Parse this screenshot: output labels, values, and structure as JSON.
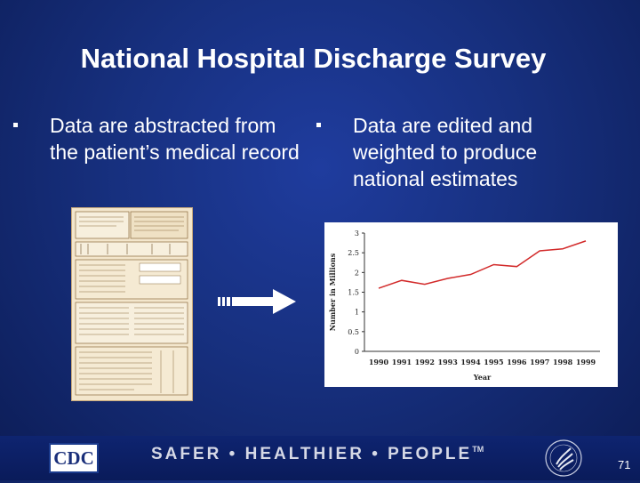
{
  "slide": {
    "title": "National Hospital Discharge Survey",
    "bullets": [
      "Data are abstracted from the patient’s medical record",
      "Data are edited and weighted to produce national estimates"
    ],
    "page_number": "71"
  },
  "footer": {
    "logo_text": "CDC",
    "slogan": "SAFER • HEALTHIER • PEOPLE",
    "trademark": "TM"
  },
  "icons": {
    "arrow": "right-arrow-icon",
    "form": "medical-abstract-form-image",
    "seal": "hhs-seal-icon"
  },
  "colors": {
    "background": "#17307f",
    "line": "#d22a2a"
  },
  "chart_data": {
    "type": "line",
    "title": "",
    "xlabel": "Year",
    "ylabel": "Number in Millions",
    "x": [
      "1990",
      "1991",
      "1992",
      "1993",
      "1994",
      "1995",
      "1996",
      "1997",
      "1998",
      "1999"
    ],
    "series": [
      {
        "values": [
          1.6,
          1.8,
          1.7,
          1.85,
          1.95,
          2.2,
          2.15,
          2.55,
          2.6,
          2.8
        ]
      }
    ],
    "ylim": [
      0,
      3
    ],
    "yticks": [
      "0",
      "0.5",
      "1",
      "1.5",
      "2",
      "2.5",
      "3"
    ],
    "grid": false,
    "legend": "none"
  }
}
